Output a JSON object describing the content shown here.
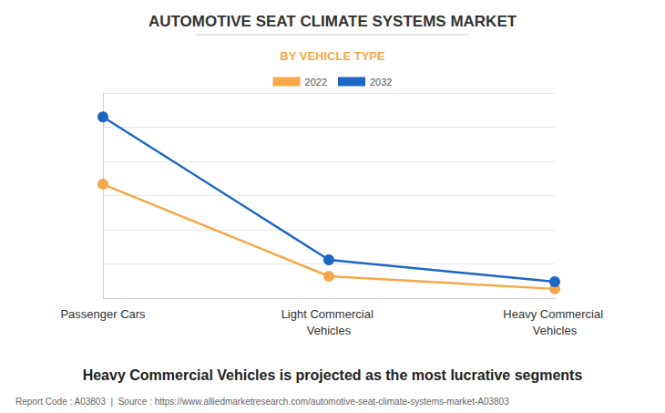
{
  "chart_data": {
    "type": "line",
    "title": "AUTOMOTIVE SEAT CLIMATE SYSTEMS MARKET",
    "subtitle": "BY VEHICLE TYPE",
    "caption": "Heavy Commercial Vehicles is projected as the most lucrative segments",
    "footer": "Report Code : A03803  |  Source : https://www.alliedmarketresearch.com/automotive-seat-climate-systems-market-A03803",
    "categories": [
      "Passenger Cars",
      "Light Commercial Vehicles",
      "Heavy Commercial Vehicles"
    ],
    "series": [
      {
        "name": "2022",
        "color": "#f4a84a",
        "values": [
          3.33,
          0.64,
          0.27
        ]
      },
      {
        "name": "2032",
        "color": "#1c66c6",
        "values": [
          5.3,
          1.12,
          0.48
        ]
      }
    ],
    "ylim": [
      0,
      6
    ],
    "yticks": [
      0,
      1,
      2,
      3,
      4,
      5,
      6
    ],
    "grid": true,
    "legend": "top",
    "marker": "circle",
    "tick_labels": "x"
  }
}
